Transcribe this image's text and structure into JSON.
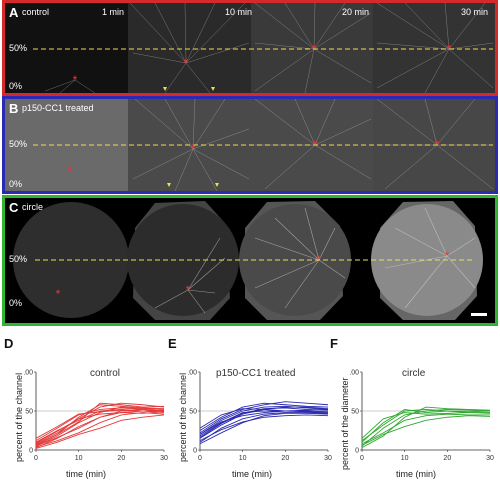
{
  "panels": [
    {
      "letter": "A",
      "label": "control",
      "color": "#d42a2a",
      "times": [
        "1 min",
        "10 min",
        "20 min",
        "30 min"
      ],
      "pct_top": "50%",
      "pct_bottom": "0%"
    },
    {
      "letter": "B",
      "label": "p150-CC1 treated",
      "color": "#2a2ab4",
      "times": [],
      "pct_top": "50%",
      "pct_bottom": "0%"
    },
    {
      "letter": "C",
      "label": "circle",
      "color": "#2fb52f",
      "times": [],
      "pct_top": "50%",
      "pct_bottom": "0%"
    }
  ],
  "chart_data": [
    {
      "type": "line",
      "letter": "D",
      "title": "control",
      "xlabel": "time (min)",
      "ylabel": "percent of the channel",
      "xlim": [
        0,
        30
      ],
      "ylim": [
        0,
        100
      ],
      "xticks": [
        "0",
        "10",
        "20",
        "30"
      ],
      "yticks": [
        "0",
        "50",
        "100"
      ],
      "reference_y": 50,
      "color": "#e23a3a",
      "series": [
        {
          "x": [
            0,
            5,
            10,
            15,
            20,
            25,
            30
          ],
          "y": [
            8,
            22,
            40,
            55,
            60,
            58,
            55
          ]
        },
        {
          "x": [
            0,
            5,
            10,
            15,
            20,
            25,
            30
          ],
          "y": [
            5,
            18,
            35,
            48,
            55,
            53,
            52
          ]
        },
        {
          "x": [
            0,
            5,
            10,
            15,
            20,
            25,
            30
          ],
          "y": [
            12,
            28,
            45,
            52,
            54,
            52,
            50
          ]
        },
        {
          "x": [
            0,
            5,
            10,
            15,
            20,
            25,
            30
          ],
          "y": [
            3,
            15,
            30,
            42,
            50,
            52,
            50
          ]
        },
        {
          "x": [
            0,
            5,
            10,
            15,
            20,
            25,
            30
          ],
          "y": [
            10,
            25,
            38,
            50,
            52,
            50,
            48
          ]
        },
        {
          "x": [
            0,
            5,
            10,
            15,
            20,
            25,
            30
          ],
          "y": [
            6,
            20,
            42,
            58,
            56,
            54,
            53
          ]
        },
        {
          "x": [
            0,
            5,
            10,
            15,
            20,
            25,
            30
          ],
          "y": [
            15,
            30,
            46,
            49,
            51,
            50,
            50
          ]
        },
        {
          "x": [
            0,
            5,
            10,
            15,
            20,
            25,
            30
          ],
          "y": [
            4,
            12,
            22,
            35,
            45,
            48,
            46
          ]
        },
        {
          "x": [
            0,
            5,
            10,
            15,
            20,
            25,
            30
          ],
          "y": [
            9,
            24,
            40,
            46,
            48,
            47,
            49
          ]
        },
        {
          "x": [
            0,
            5,
            10,
            15,
            20,
            25,
            30
          ],
          "y": [
            2,
            10,
            20,
            28,
            38,
            42,
            45
          ]
        },
        {
          "x": [
            0,
            5,
            10,
            15,
            20,
            25,
            30
          ],
          "y": [
            7,
            20,
            36,
            60,
            58,
            55,
            56
          ]
        },
        {
          "x": [
            0,
            5,
            10,
            15,
            20,
            25,
            30
          ],
          "y": [
            5,
            16,
            28,
            42,
            48,
            50,
            51
          ]
        }
      ]
    },
    {
      "type": "line",
      "letter": "E",
      "title": "p150-CC1 treated",
      "xlabel": "time (min)",
      "ylabel": "percent of the channel",
      "xlim": [
        0,
        30
      ],
      "ylim": [
        0,
        100
      ],
      "xticks": [
        "0",
        "10",
        "20",
        "30"
      ],
      "yticks": [
        "0",
        "50",
        "100"
      ],
      "reference_y": 50,
      "color": "#2a2ab0",
      "series": [
        {
          "x": [
            0,
            5,
            10,
            15,
            20,
            25,
            30
          ],
          "y": [
            20,
            38,
            50,
            55,
            56,
            54,
            52
          ]
        },
        {
          "x": [
            0,
            5,
            10,
            15,
            20,
            25,
            30
          ],
          "y": [
            15,
            32,
            46,
            52,
            55,
            55,
            53
          ]
        },
        {
          "x": [
            0,
            5,
            10,
            15,
            20,
            25,
            30
          ],
          "y": [
            25,
            42,
            55,
            60,
            58,
            56,
            55
          ]
        },
        {
          "x": [
            0,
            5,
            10,
            15,
            20,
            25,
            30
          ],
          "y": [
            10,
            28,
            40,
            46,
            48,
            48,
            47
          ]
        },
        {
          "x": [
            0,
            5,
            10,
            15,
            20,
            25,
            30
          ],
          "y": [
            18,
            35,
            48,
            50,
            50,
            49,
            48
          ]
        },
        {
          "x": [
            0,
            5,
            10,
            15,
            20,
            25,
            30
          ],
          "y": [
            22,
            40,
            52,
            58,
            62,
            60,
            58
          ]
        },
        {
          "x": [
            0,
            5,
            10,
            15,
            20,
            25,
            30
          ],
          "y": [
            12,
            26,
            36,
            42,
            44,
            45,
            44
          ]
        },
        {
          "x": [
            0,
            5,
            10,
            15,
            20,
            25,
            30
          ],
          "y": [
            28,
            45,
            53,
            52,
            50,
            50,
            49
          ]
        },
        {
          "x": [
            0,
            5,
            10,
            15,
            20,
            25,
            30
          ],
          "y": [
            8,
            22,
            35,
            44,
            47,
            47,
            46
          ]
        },
        {
          "x": [
            0,
            5,
            10,
            15,
            20,
            25,
            30
          ],
          "y": [
            16,
            34,
            47,
            53,
            54,
            52,
            51
          ]
        },
        {
          "x": [
            0,
            5,
            10,
            15,
            20,
            25,
            30
          ],
          "y": [
            20,
            36,
            44,
            48,
            50,
            51,
            52
          ]
        }
      ]
    },
    {
      "type": "line",
      "letter": "F",
      "title": "circle",
      "xlabel": "time (min)",
      "ylabel": "percent of the diameter",
      "xlim": [
        0,
        30
      ],
      "ylim": [
        0,
        100
      ],
      "xticks": [
        "0",
        "10",
        "20",
        "30"
      ],
      "yticks": [
        "0",
        "50",
        "100"
      ],
      "reference_y": 50,
      "color": "#2fa82f",
      "series": [
        {
          "x": [
            0,
            5,
            10,
            15,
            20,
            25,
            30
          ],
          "y": [
            10,
            35,
            52,
            48,
            50,
            49,
            50
          ]
        },
        {
          "x": [
            0,
            5,
            10,
            15,
            20,
            25,
            30
          ],
          "y": [
            5,
            28,
            45,
            50,
            52,
            51,
            50
          ]
        },
        {
          "x": [
            0,
            5,
            10,
            15,
            20,
            25,
            30
          ],
          "y": [
            15,
            40,
            48,
            46,
            47,
            48,
            48
          ]
        },
        {
          "x": [
            0,
            5,
            10,
            15,
            20,
            25,
            30
          ],
          "y": [
            8,
            22,
            38,
            44,
            46,
            45,
            45
          ]
        },
        {
          "x": [
            0,
            5,
            10,
            15,
            20,
            25,
            30
          ],
          "y": [
            3,
            18,
            42,
            55,
            53,
            52,
            51
          ]
        },
        {
          "x": [
            0,
            5,
            10,
            15,
            20,
            25,
            30
          ],
          "y": [
            12,
            32,
            50,
            52,
            50,
            48,
            47
          ]
        },
        {
          "x": [
            0,
            5,
            10,
            15,
            20,
            25,
            30
          ],
          "y": [
            6,
            20,
            30,
            38,
            42,
            44,
            43
          ]
        }
      ]
    }
  ]
}
